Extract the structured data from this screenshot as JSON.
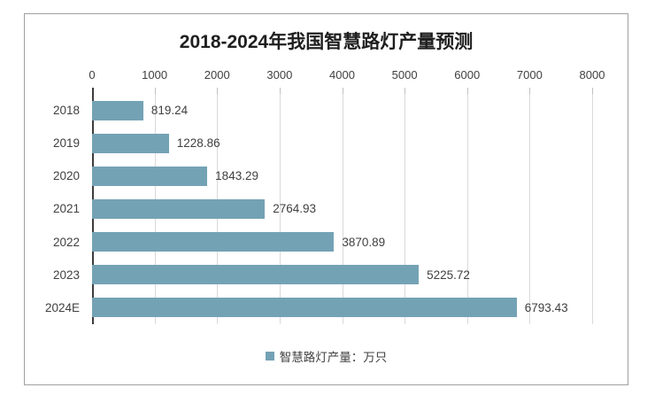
{
  "chart_data": {
    "type": "bar",
    "orientation": "horizontal",
    "title": "2018-2024年我国智慧路灯产量预测",
    "categories": [
      "2018",
      "2019",
      "2020",
      "2021",
      "2022",
      "2023",
      "2024E"
    ],
    "values": [
      819.24,
      1228.86,
      1843.29,
      2764.93,
      3870.89,
      5225.72,
      6793.43
    ],
    "value_labels": [
      "819.24",
      "1228.86",
      "1843.29",
      "2764.93",
      "3870.89",
      "5225.72",
      "6793.43"
    ],
    "xlim": [
      0,
      8000
    ],
    "x_ticks": [
      0,
      1000,
      2000,
      3000,
      4000,
      5000,
      6000,
      7000,
      8000
    ],
    "x_tick_labels": [
      "0",
      "1000",
      "2000",
      "3000",
      "4000",
      "5000",
      "6000",
      "7000",
      "8000"
    ],
    "grid": true,
    "axis_position": "top",
    "legend": {
      "label": "智慧路灯产量：万只",
      "position": "bottom",
      "marker": "square"
    },
    "colors": {
      "bar": "#74a2b5",
      "gridline": "#d9d9d9",
      "axis_line": "#3d3d3d",
      "text": "#404040",
      "title": "#1f1f1f",
      "card_border": "#a0a0a0"
    }
  }
}
